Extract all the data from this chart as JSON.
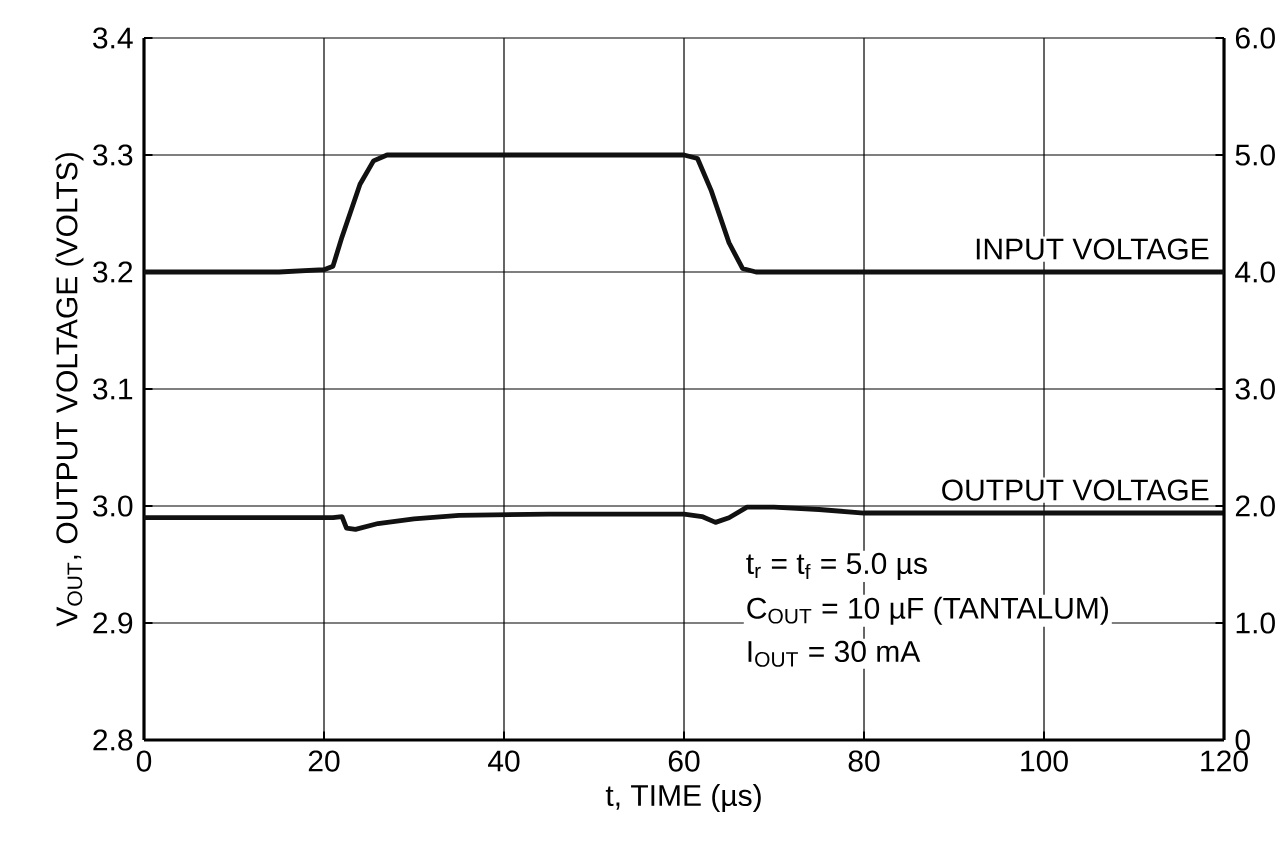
{
  "chart_data": {
    "type": "line",
    "xlabel": "t, TIME (µs)",
    "ylabel": "V$_{OUT}$, OUTPUT VOLTAGE (VOLTS)",
    "xlim": [
      0,
      120
    ],
    "xticks": [
      0,
      20,
      40,
      60,
      80,
      100,
      120
    ],
    "ylim": [
      2.8,
      3.4
    ],
    "yticks": [
      2.8,
      2.9,
      {
        "value": 3,
        "label": "3.0"
      },
      3.1,
      3.2,
      3.3,
      3.4
    ],
    "y2lim": [
      0,
      6
    ],
    "y2ticks": [
      0,
      {
        "value": 1,
        "label": "1.0"
      },
      {
        "value": 2,
        "label": "2.0"
      },
      {
        "value": 3,
        "label": "3.0"
      },
      {
        "value": 4,
        "label": "4.0"
      },
      {
        "value": 5,
        "label": "5.0"
      },
      {
        "value": 6,
        "label": "6.0"
      }
    ],
    "grid": true,
    "series": [
      {
        "name": "INPUT VOLTAGE",
        "color": "#111111",
        "axis": "y2",
        "x": [
          0,
          15,
          20,
          21,
          22,
          24,
          25.5,
          27,
          60,
          61.5,
          63,
          65,
          66.5,
          68,
          120
        ],
        "values": [
          4.0,
          4.0,
          4.02,
          4.05,
          4.3,
          4.75,
          4.95,
          5.0,
          5.0,
          4.97,
          4.7,
          4.25,
          4.03,
          4.0,
          4.0
        ]
      },
      {
        "name": "OUTPUT VOLTAGE",
        "color": "#111111",
        "x": [
          0,
          21,
          22,
          22.5,
          23.5,
          26,
          30,
          35,
          45,
          60,
          62,
          63.5,
          65,
          67,
          70,
          75,
          80,
          120
        ],
        "values": [
          2.99,
          2.99,
          2.991,
          2.981,
          2.98,
          2.985,
          2.989,
          2.992,
          2.993,
          2.993,
          2.991,
          2.986,
          2.99,
          2.999,
          2.999,
          2.997,
          2.994,
          2.994
        ]
      }
    ],
    "annotations": [
      "t$_{r}$ = t$_{f}$ = 5.0 µs",
      "C$_{OUT}$ = 10 µF (TANTALUM)",
      "I$_{OUT}$ = 30 mA"
    ]
  }
}
